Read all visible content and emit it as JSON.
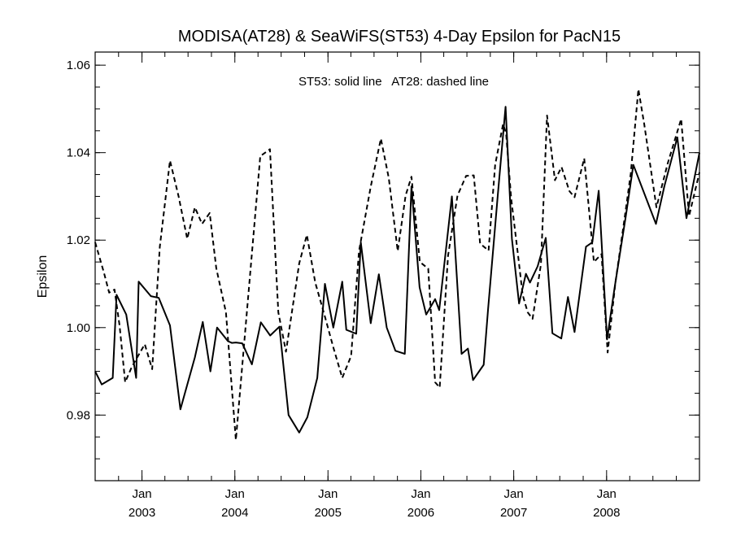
{
  "chart_data": {
    "type": "line",
    "title": "MODISA(AT28) & SeaWiFS(ST53) 4-Day Epsilon for PacN15",
    "annotation": "ST53: solid line   AT28: dashed line",
    "ylabel": "Epsilon",
    "xlabel": "",
    "xlim": [
      "2002-07-01",
      "2008-12-31"
    ],
    "ylim": [
      0.965,
      1.063
    ],
    "y_ticks": [
      {
        "value": 0.98,
        "label": "0.98"
      },
      {
        "value": 1.0,
        "label": "1.00"
      },
      {
        "value": 1.02,
        "label": "1.02"
      },
      {
        "value": 1.04,
        "label": "1.04"
      },
      {
        "value": 1.06,
        "label": "1.06"
      }
    ],
    "y_minor_step": 0.005,
    "x_ticks": [
      {
        "date": "2003-01-01",
        "month": "Jan",
        "year": "2003"
      },
      {
        "date": "2004-01-01",
        "month": "Jan",
        "year": "2004"
      },
      {
        "date": "2005-01-01",
        "month": "Jan",
        "year": "2005"
      },
      {
        "date": "2006-01-01",
        "month": "Jan",
        "year": "2006"
      },
      {
        "date": "2007-01-01",
        "month": "Jan",
        "year": "2007"
      },
      {
        "date": "2008-01-01",
        "month": "Jan",
        "year": "2008"
      }
    ],
    "x_minor_months": 3,
    "grid": false,
    "series": [
      {
        "name": "ST53",
        "style": "solid",
        "color": "#000000",
        "points": [
          [
            "2002-07-01",
            0.99
          ],
          [
            "2002-07-27",
            0.987
          ],
          [
            "2002-09-08",
            0.9885
          ],
          [
            "2002-09-23",
            1.0075
          ],
          [
            "2002-10-31",
            1.003
          ],
          [
            "2002-12-09",
            0.9885
          ],
          [
            "2002-12-19",
            1.0105
          ],
          [
            "2003-02-05",
            1.0072
          ],
          [
            "2003-03-08",
            1.0068
          ],
          [
            "2003-04-21",
            1.0005
          ],
          [
            "2003-06-01",
            0.9813
          ],
          [
            "2003-07-28",
            0.9932
          ],
          [
            "2003-08-28",
            1.0013
          ],
          [
            "2003-09-27",
            0.99
          ],
          [
            "2003-10-23",
            1.0
          ],
          [
            "2003-12-05",
            0.9969
          ],
          [
            "2003-12-20",
            0.9965
          ],
          [
            "2004-01-05",
            0.9966
          ],
          [
            "2004-01-30",
            0.9964
          ],
          [
            "2004-03-08",
            0.9916
          ],
          [
            "2004-04-12",
            1.0012
          ],
          [
            "2004-05-19",
            0.9982
          ],
          [
            "2004-06-24",
            1.0002
          ],
          [
            "2004-07-30",
            0.98
          ],
          [
            "2004-09-10",
            0.976
          ],
          [
            "2004-10-12",
            0.9795
          ],
          [
            "2004-11-20",
            0.9885
          ],
          [
            "2004-12-20",
            1.01
          ],
          [
            "2005-01-22",
            1.0
          ],
          [
            "2005-02-26",
            1.0105
          ],
          [
            "2005-03-14",
            0.9995
          ],
          [
            "2005-04-22",
            0.9986
          ],
          [
            "2005-05-10",
            1.0195
          ],
          [
            "2005-06-18",
            1.001
          ],
          [
            "2005-07-20",
            1.0122
          ],
          [
            "2005-08-20",
            1.0
          ],
          [
            "2005-09-23",
            0.9947
          ],
          [
            "2005-10-30",
            0.994
          ],
          [
            "2005-11-25",
            1.0323
          ],
          [
            "2005-12-27",
            1.0092
          ],
          [
            "2006-01-22",
            1.003
          ],
          [
            "2006-02-26",
            1.0065
          ],
          [
            "2006-03-14",
            1.004
          ],
          [
            "2006-05-03",
            1.03
          ],
          [
            "2006-06-10",
            0.994
          ],
          [
            "2006-07-05",
            0.9952
          ],
          [
            "2006-07-25",
            0.988
          ],
          [
            "2006-09-05",
            0.9915
          ],
          [
            "2006-09-22",
            1.004
          ],
          [
            "2006-10-30",
            1.03
          ],
          [
            "2006-11-30",
            1.0505
          ],
          [
            "2006-12-25",
            1.0203
          ],
          [
            "2007-01-22",
            1.0055
          ],
          [
            "2007-02-18",
            1.0123
          ],
          [
            "2007-03-06",
            1.0103
          ],
          [
            "2007-04-05",
            1.014
          ],
          [
            "2007-05-07",
            1.0205
          ],
          [
            "2007-06-02",
            0.9987
          ],
          [
            "2007-07-07",
            0.9975
          ],
          [
            "2007-08-02",
            1.007
          ],
          [
            "2007-08-28",
            0.999
          ],
          [
            "2007-10-12",
            1.0185
          ],
          [
            "2007-11-06",
            1.0195
          ],
          [
            "2007-12-01",
            1.0313
          ],
          [
            "2008-01-03",
            0.9973
          ],
          [
            "2008-02-02",
            1.0093
          ],
          [
            "2008-03-17",
            1.0257
          ],
          [
            "2008-04-15",
            1.0372
          ],
          [
            "2008-07-13",
            1.0237
          ],
          [
            "2008-08-15",
            1.0323
          ],
          [
            "2008-10-05",
            1.0435
          ],
          [
            "2008-11-10",
            1.025
          ],
          [
            "2008-12-31",
            1.04
          ]
        ]
      },
      {
        "name": "AT28",
        "style": "dashed",
        "color": "#000000",
        "points": [
          [
            "2002-07-01",
            1.0195
          ],
          [
            "2002-08-05",
            1.0125
          ],
          [
            "2002-08-25",
            1.008
          ],
          [
            "2002-09-15",
            1.0087
          ],
          [
            "2002-10-05",
            1.0005
          ],
          [
            "2002-10-27",
            0.9875
          ],
          [
            "2002-11-22",
            0.991
          ],
          [
            "2003-01-12",
            0.9962
          ],
          [
            "2003-02-10",
            0.9905
          ],
          [
            "2003-03-12",
            1.0185
          ],
          [
            "2003-04-21",
            1.0382
          ],
          [
            "2003-05-25",
            1.03
          ],
          [
            "2003-06-28",
            1.0203
          ],
          [
            "2003-07-28",
            1.0275
          ],
          [
            "2003-08-25",
            1.0237
          ],
          [
            "2003-09-24",
            1.0262
          ],
          [
            "2003-10-20",
            1.0136
          ],
          [
            "2003-11-27",
            1.0035
          ],
          [
            "2004-01-05",
            0.9743
          ],
          [
            "2004-04-10",
            1.0392
          ],
          [
            "2004-05-18",
            1.0408
          ],
          [
            "2004-06-20",
            1.0035
          ],
          [
            "2004-07-20",
            0.9945
          ],
          [
            "2004-09-10",
            1.0147
          ],
          [
            "2004-10-10",
            1.0212
          ],
          [
            "2004-11-12",
            1.0103
          ],
          [
            "2004-12-20",
            1.0025
          ],
          [
            "2005-01-22",
            0.9955
          ],
          [
            "2005-02-26",
            0.9885
          ],
          [
            "2005-04-02",
            0.9935
          ],
          [
            "2005-05-03",
            1.0175
          ],
          [
            "2005-06-18",
            1.0322
          ],
          [
            "2005-07-28",
            1.0432
          ],
          [
            "2005-08-28",
            1.0342
          ],
          [
            "2005-10-02",
            1.0175
          ],
          [
            "2005-11-02",
            1.0302
          ],
          [
            "2005-11-25",
            1.0345
          ],
          [
            "2005-12-28",
            1.015
          ],
          [
            "2006-01-30",
            1.0135
          ],
          [
            "2006-02-26",
            0.9875
          ],
          [
            "2006-03-16",
            0.9863
          ],
          [
            "2006-04-18",
            1.0165
          ],
          [
            "2006-05-25",
            1.0302
          ],
          [
            "2006-06-28",
            1.0347
          ],
          [
            "2006-07-28",
            1.0348
          ],
          [
            "2006-08-22",
            1.0192
          ],
          [
            "2006-09-24",
            1.0176
          ],
          [
            "2006-10-20",
            1.0372
          ],
          [
            "2006-11-20",
            1.0465
          ],
          [
            "2006-12-02",
            1.0445
          ],
          [
            "2006-12-22",
            1.0295
          ],
          [
            "2007-01-20",
            1.0155
          ],
          [
            "2007-02-05",
            1.0075
          ],
          [
            "2007-02-25",
            1.0035
          ],
          [
            "2007-03-16",
            1.002
          ],
          [
            "2007-04-18",
            1.0145
          ],
          [
            "2007-05-12",
            1.0485
          ],
          [
            "2007-06-12",
            1.0337
          ],
          [
            "2007-07-08",
            1.0367
          ],
          [
            "2007-08-08",
            1.0312
          ],
          [
            "2007-08-28",
            1.0298
          ],
          [
            "2007-10-05",
            1.0387
          ],
          [
            "2007-11-12",
            1.015
          ],
          [
            "2007-12-12",
            1.0168
          ],
          [
            "2008-01-05",
            0.9943
          ],
          [
            "2008-02-05",
            1.0105
          ],
          [
            "2008-03-08",
            1.0235
          ],
          [
            "2008-04-05",
            1.0352
          ],
          [
            "2008-05-05",
            1.0545
          ],
          [
            "2008-05-28",
            1.0465
          ],
          [
            "2008-07-15",
            1.0275
          ],
          [
            "2008-08-28",
            1.0375
          ],
          [
            "2008-10-20",
            1.0477
          ],
          [
            "2008-11-20",
            1.0255
          ],
          [
            "2008-12-31",
            1.0355
          ]
        ]
      }
    ]
  }
}
